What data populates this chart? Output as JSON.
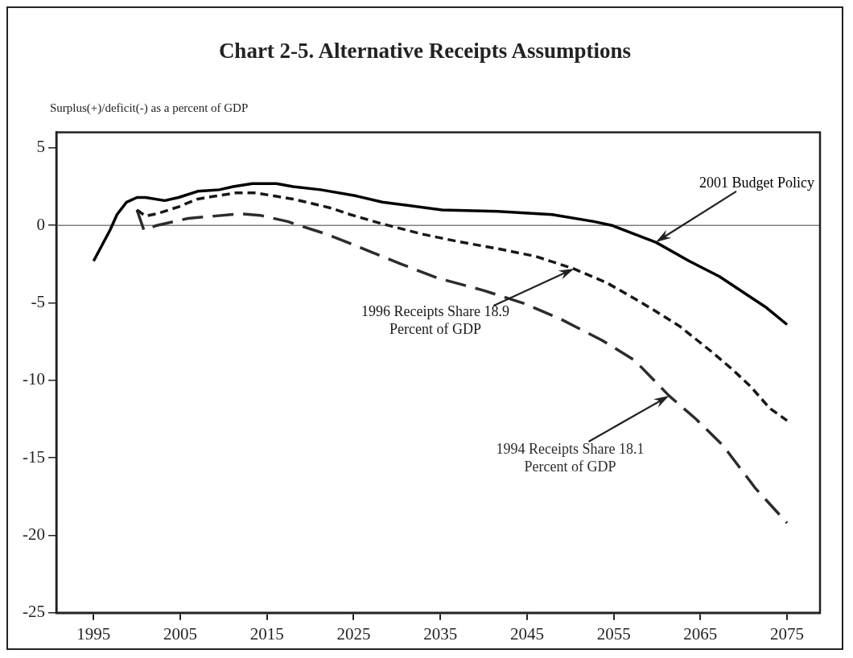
{
  "chart_data": {
    "type": "line",
    "title": "Chart 2-5.  Alternative Receipts Assumptions",
    "ylabel": "Surplus(+)/deficit(-) as a percent of GDP",
    "xlim": [
      1990.7,
      2078.8
    ],
    "xticks": [
      1995,
      2005,
      2015,
      2025,
      2035,
      2045,
      2055,
      2065,
      2075
    ],
    "ylim": [
      -25,
      6
    ],
    "yticks": [
      5,
      0,
      -5,
      -10,
      -15,
      -20,
      -25
    ],
    "grid": false,
    "legend": false,
    "marker": "none",
    "ref_lines": [
      {
        "axis": "y",
        "value": 0,
        "color": "#808080"
      }
    ],
    "series": [
      {
        "name": "2001 Budget Policy",
        "color": "#000000",
        "line_style": "solid",
        "x": [
          1995,
          1996.9,
          1997.7,
          1998.8,
          2000,
          2001,
          2003.2,
          2004.8,
          2007,
          2009.5,
          2011.1,
          2013.3,
          2016.1,
          2018,
          2021.2,
          2025.3,
          2028.3,
          2035.2,
          2041.6,
          2047.9,
          2052.7,
          2054.8,
          2059.9,
          2063.7,
          2067.2,
          2070.7,
          2072.6,
          2075
        ],
        "values": [
          -2.3,
          -0.3,
          0.7,
          1.5,
          1.8,
          1.8,
          1.6,
          1.8,
          2.2,
          2.3,
          2.5,
          2.7,
          2.7,
          2.5,
          2.3,
          1.9,
          1.5,
          1.0,
          0.9,
          0.7,
          0.25,
          0,
          -1.1,
          -2.3,
          -3.3,
          -4.6,
          -5.3,
          -6.4
        ]
      },
      {
        "name": "1996 Receipts Share 18.9\nPercent of GDP",
        "color": "#181818",
        "line_style": "dashed",
        "x": [
          2000,
          2001,
          2002.3,
          2004.8,
          2007,
          2009.2,
          2011.4,
          2013.7,
          2015.8,
          2018,
          2020.3,
          2022.5,
          2024.6,
          2028.3,
          2032.8,
          2037.1,
          2041.6,
          2046,
          2050.4,
          2054.2,
          2058.4,
          2060.3,
          2062.6,
          2066.4,
          2068.7,
          2070.8,
          2073,
          2075
        ],
        "values": [
          1.0,
          0.6,
          0.75,
          1.2,
          1.7,
          1.9,
          2.1,
          2.1,
          1.9,
          1.7,
          1.4,
          1.1,
          0.7,
          0.1,
          -0.55,
          -1.05,
          -1.5,
          -2.0,
          -2.8,
          -3.7,
          -5.05,
          -5.7,
          -6.5,
          -8.2,
          -9.3,
          -10.4,
          -11.8,
          -12.6
        ]
      },
      {
        "name": "1994 Receipts Share 18.1\nPercent of GDP",
        "color": "#2c2c2c",
        "line_style": "dashed",
        "x": [
          2000,
          2000.8,
          2002.3,
          2005.9,
          2008.9,
          2012,
          2014.2,
          2017.4,
          2018.7,
          2021.8,
          2025,
          2026.7,
          2030.5,
          2034.7,
          2040,
          2044.7,
          2048.9,
          2053.6,
          2057.4,
          2061.4,
          2064.5,
          2067.6,
          2071.4,
          2075
        ],
        "values": [
          1.0,
          -0.3,
          0,
          0.45,
          0.6,
          0.75,
          0.65,
          0.25,
          0,
          -0.55,
          -1.25,
          -1.65,
          -2.5,
          -3.4,
          -4.2,
          -5.05,
          -6.05,
          -7.4,
          -8.7,
          -11.0,
          -12.5,
          -14.2,
          -17.0,
          -19.2
        ]
      }
    ]
  }
}
